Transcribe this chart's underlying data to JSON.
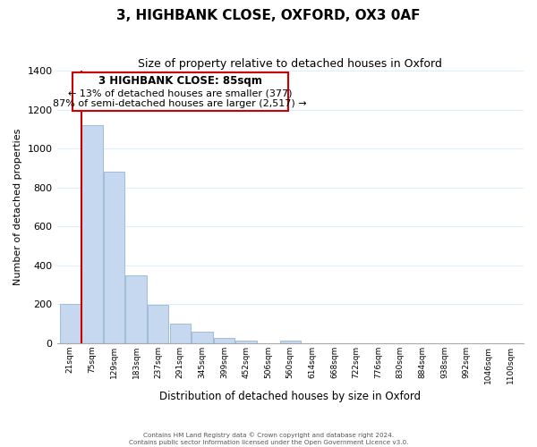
{
  "title": "3, HIGHBANK CLOSE, OXFORD, OX3 0AF",
  "subtitle": "Size of property relative to detached houses in Oxford",
  "xlabel": "Distribution of detached houses by size in Oxford",
  "ylabel": "Number of detached properties",
  "bar_color": "#c5d8f0",
  "bar_edge_color": "#a0bcd8",
  "bin_labels": [
    "21sqm",
    "75sqm",
    "129sqm",
    "183sqm",
    "237sqm",
    "291sqm",
    "345sqm",
    "399sqm",
    "452sqm",
    "506sqm",
    "560sqm",
    "614sqm",
    "668sqm",
    "722sqm",
    "776sqm",
    "830sqm",
    "884sqm",
    "938sqm",
    "992sqm",
    "1046sqm",
    "1100sqm"
  ],
  "bar_heights": [
    200,
    1120,
    880,
    350,
    195,
    100,
    57,
    25,
    15,
    0,
    15,
    0,
    0,
    0,
    0,
    0,
    0,
    0,
    0,
    0,
    0
  ],
  "ylim": [
    0,
    1400
  ],
  "yticks": [
    0,
    200,
    400,
    600,
    800,
    1000,
    1200,
    1400
  ],
  "property_line_bin_index": 1,
  "annotation_title": "3 HIGHBANK CLOSE: 85sqm",
  "annotation_line1": "← 13% of detached houses are smaller (377)",
  "annotation_line2": "87% of semi-detached houses are larger (2,517) →",
  "annotation_box_color": "#ffffff",
  "annotation_box_edge_color": "#cc0000",
  "property_line_color": "#cc0000",
  "footer_line1": "Contains HM Land Registry data © Crown copyright and database right 2024.",
  "footer_line2": "Contains public sector information licensed under the Open Government Licence v3.0.",
  "background_color": "#ffffff",
  "grid_color": "#ddeeff"
}
